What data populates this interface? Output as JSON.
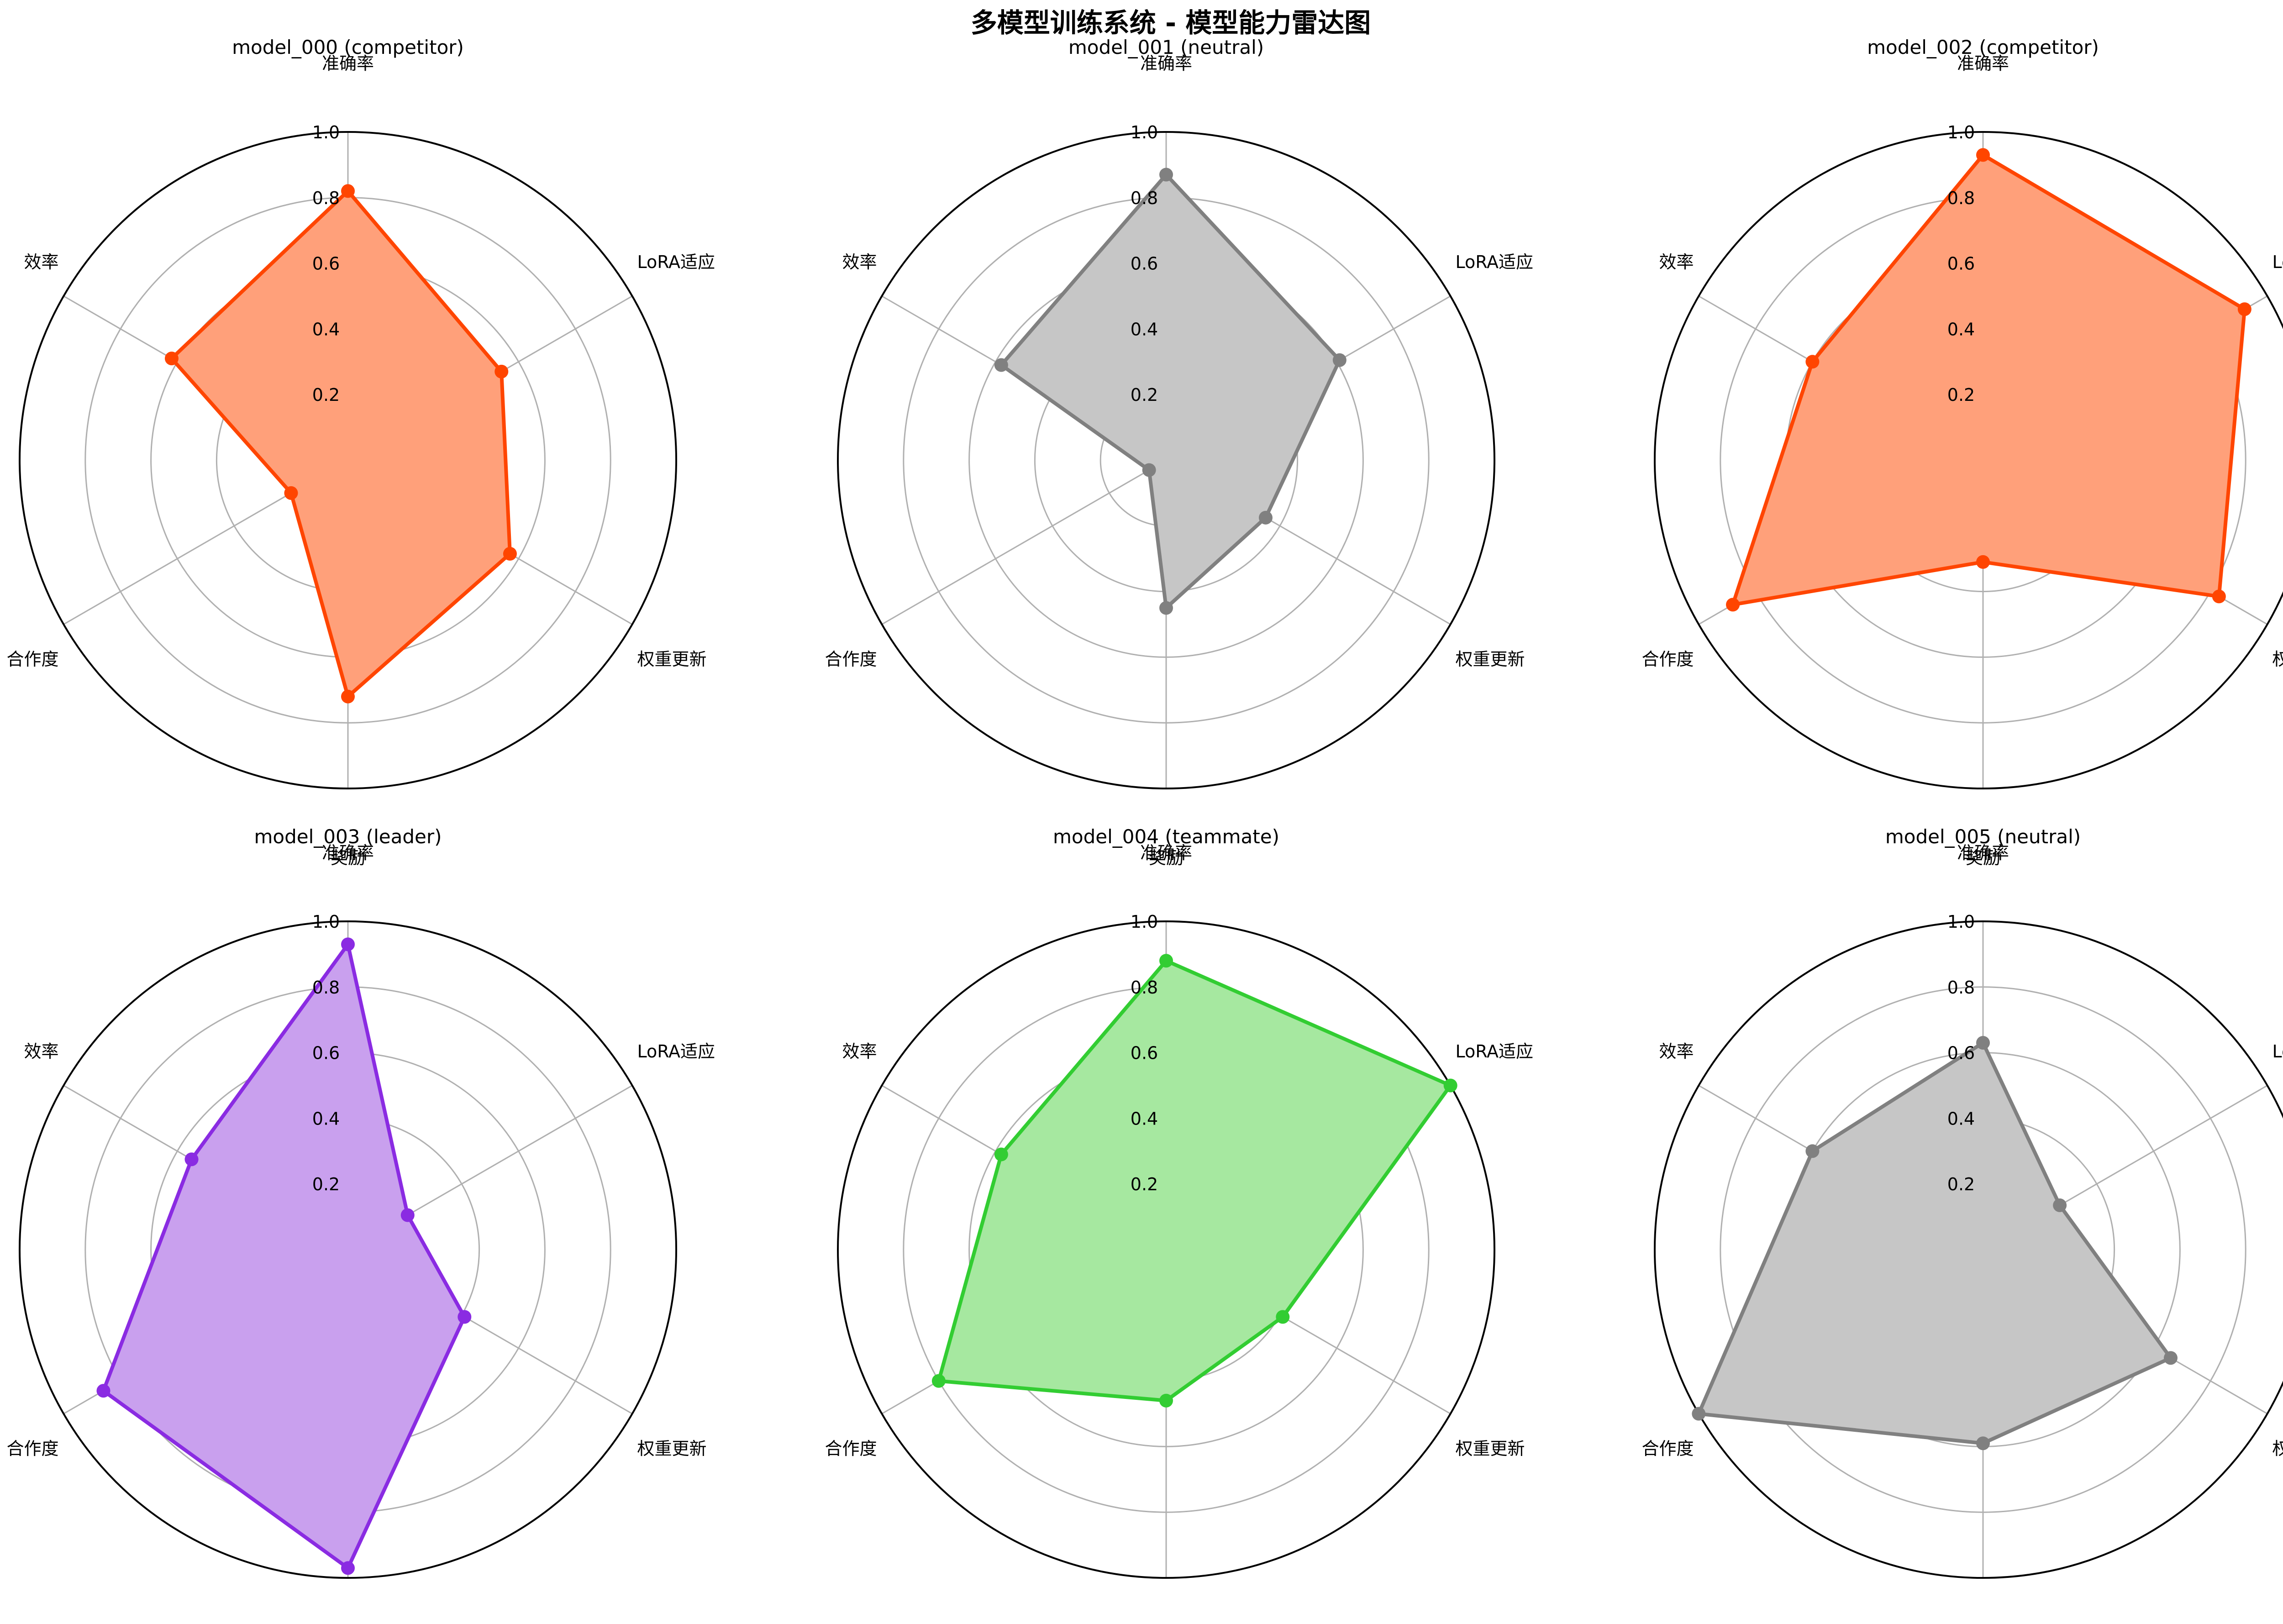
{
  "figure": {
    "suptitle": "多模型训练系统 - 模型能力雷达图"
  },
  "chart_data": [
    {
      "type": "radar",
      "title": "model_000 (competitor)",
      "axes": [
        "准确率",
        "LoRA适应",
        "权重更新",
        "奖励",
        "合作度",
        "效率"
      ],
      "values": [
        0.82,
        0.54,
        0.57,
        0.72,
        0.2,
        0.62
      ],
      "rlim": [
        0,
        1
      ],
      "rticks": [
        "0.2",
        "0.4",
        "0.6",
        "0.8",
        "1.0"
      ],
      "grid": true,
      "color": "#ff4500",
      "fill_color": "#ffa07a"
    },
    {
      "type": "radar",
      "title": "model_001 (neutral)",
      "axes": [
        "准确率",
        "LoRA适应",
        "权重更新",
        "奖励",
        "合作度",
        "效率"
      ],
      "values": [
        0.87,
        0.61,
        0.35,
        0.45,
        0.06,
        0.58
      ],
      "rlim": [
        0,
        1
      ],
      "rticks": [
        "0.2",
        "0.4",
        "0.6",
        "0.8",
        "1.0"
      ],
      "grid": true,
      "color": "#808080",
      "fill_color": "#c6c6c6"
    },
    {
      "type": "radar",
      "title": "model_002 (competitor)",
      "axes": [
        "准确率",
        "LoRA适应",
        "权重更新",
        "奖励",
        "合作度",
        "效率"
      ],
      "values": [
        0.93,
        0.92,
        0.83,
        0.31,
        0.88,
        0.6
      ],
      "rlim": [
        0,
        1
      ],
      "rticks": [
        "0.2",
        "0.4",
        "0.6",
        "0.8",
        "1.0"
      ],
      "grid": true,
      "color": "#ff4500",
      "fill_color": "#ffa07a"
    },
    {
      "type": "radar",
      "title": "model_003 (leader)",
      "axes": [
        "准确率",
        "LoRA适应",
        "权重更新",
        "奖励",
        "合作度",
        "效率"
      ],
      "values": [
        0.93,
        0.21,
        0.41,
        0.97,
        0.86,
        0.55
      ],
      "rlim": [
        0,
        1
      ],
      "rticks": [
        "0.2",
        "0.4",
        "0.6",
        "0.8",
        "1.0"
      ],
      "grid": true,
      "color": "#8a2be2",
      "fill_color": "#c9a0ee"
    },
    {
      "type": "radar",
      "title": "model_004 (teammate)",
      "axes": [
        "准确率",
        "LoRA适应",
        "权重更新",
        "奖励",
        "合作度",
        "效率"
      ],
      "values": [
        0.88,
        1.0,
        0.41,
        0.46,
        0.8,
        0.58
      ],
      "rlim": [
        0,
        1
      ],
      "rticks": [
        "0.2",
        "0.4",
        "0.6",
        "0.8",
        "1.0"
      ],
      "grid": true,
      "color": "#32cd32",
      "fill_color": "#a6e8a0"
    },
    {
      "type": "radar",
      "title": "model_005 (neutral)",
      "axes": [
        "准确率",
        "LoRA适应",
        "权重更新",
        "奖励",
        "合作度",
        "效率"
      ],
      "values": [
        0.63,
        0.27,
        0.66,
        0.59,
        1.0,
        0.6
      ],
      "rlim": [
        0,
        1
      ],
      "rticks": [
        "0.2",
        "0.4",
        "0.6",
        "0.8",
        "1.0"
      ],
      "grid": true,
      "color": "#808080",
      "fill_color": "#c6c6c6"
    }
  ]
}
